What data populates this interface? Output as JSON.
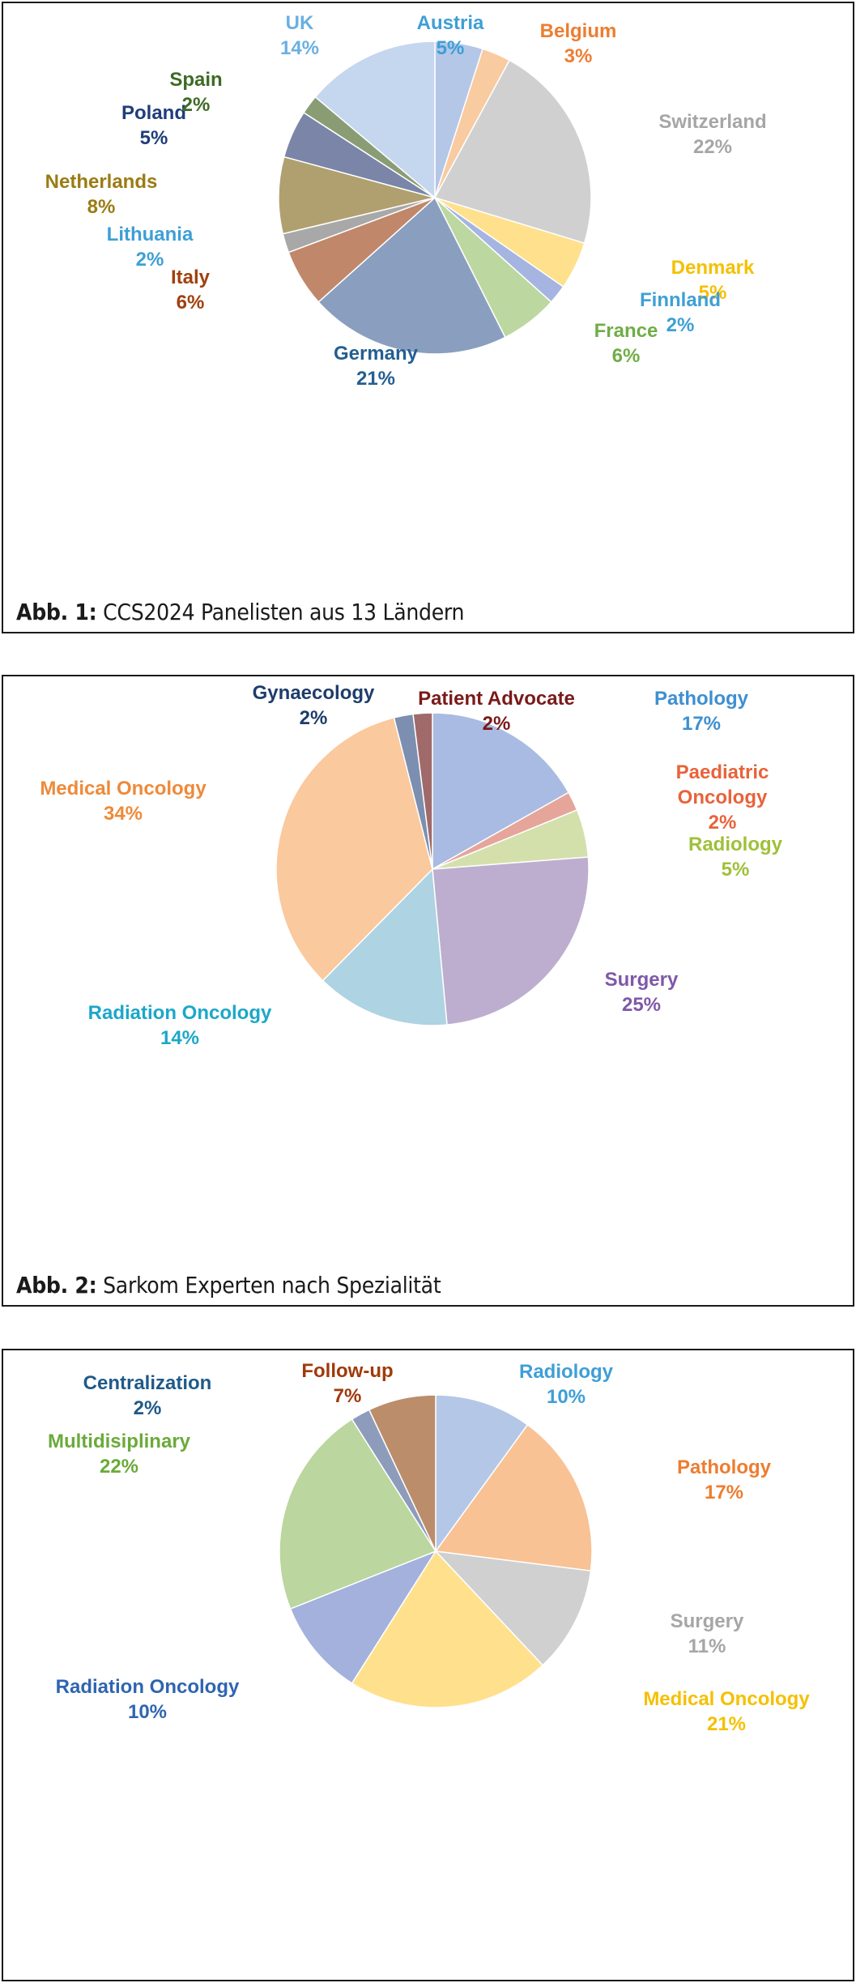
{
  "charts": [
    {
      "caption_prefix": "Abb. 1:",
      "caption_text": "CCS2024 Panelisten aus 13 Ländern",
      "chart_data": {
        "type": "pie",
        "slices": [
          {
            "label": "Austria",
            "pct_label": "5%",
            "value": 5,
            "color": "#b4c7e7",
            "label_color": "#3e9fd6"
          },
          {
            "label": "Belgium",
            "pct_label": "3%",
            "value": 3,
            "color": "#f8cba0",
            "label_color": "#ed7d31"
          },
          {
            "label": "Switzerland",
            "pct_label": "22%",
            "value": 22,
            "color": "#d0d0d0",
            "label_color": "#a6a6a6"
          },
          {
            "label": "Denmark",
            "pct_label": "5%",
            "value": 5,
            "color": "#ffe08c",
            "label_color": "#f5c000"
          },
          {
            "label": "Finnland",
            "pct_label": "2%",
            "value": 2,
            "color": "#a5b4e0",
            "label_color": "#3e9fd6"
          },
          {
            "label": "France",
            "pct_label": "6%",
            "value": 6,
            "color": "#bdd7a0",
            "label_color": "#70ad47"
          },
          {
            "label": "Germany",
            "pct_label": "21%",
            "value": 21,
            "color": "#8a9fbf",
            "label_color": "#255e91"
          },
          {
            "label": "Italy",
            "pct_label": "6%",
            "value": 6,
            "color": "#c0876a",
            "label_color": "#a0400e"
          },
          {
            "label": "Lithuania",
            "pct_label": "2%",
            "value": 2,
            "color": "#a8a8a8",
            "label_color": "#3e9fd6"
          },
          {
            "label": "Netherlands",
            "pct_label": "8%",
            "value": 8,
            "color": "#b0a070",
            "label_color": "#9b7b14"
          },
          {
            "label": "Poland",
            "pct_label": "5%",
            "value": 5,
            "color": "#7a85a8",
            "label_color": "#1f3d7a"
          },
          {
            "label": "Spain",
            "pct_label": "2%",
            "value": 2,
            "color": "#8a9c74",
            "label_color": "#3d6b24"
          },
          {
            "label": "UK",
            "pct_label": "14%",
            "value": 14,
            "color": "#c5d6ef",
            "label_color": "#6ab0e0"
          }
        ]
      }
    },
    {
      "caption_prefix": "Abb. 2:",
      "caption_text": "Sarkom Experten nach Spezialität",
      "chart_data": {
        "type": "pie",
        "slices": [
          {
            "label": "Pathology",
            "pct_label": "17%",
            "value": 17,
            "color": "#a9bbe2",
            "label_color": "#3e8fd0"
          },
          {
            "label": "Paediatric Oncology",
            "pct_label": "2%",
            "value": 2,
            "color": "#e6a59a",
            "label_color": "#e8633a"
          },
          {
            "label": "Radiology",
            "pct_label": "5%",
            "value": 5,
            "color": "#d4e0ac",
            "label_color": "#9fc03a"
          },
          {
            "label": "Surgery",
            "pct_label": "25%",
            "value": 25,
            "color": "#bdaed0",
            "label_color": "#7f58a8"
          },
          {
            "label": "Radiation Oncology",
            "pct_label": "14%",
            "value": 14,
            "color": "#aed3e2",
            "label_color": "#1ca7c9"
          },
          {
            "label": "Medical Oncology",
            "pct_label": "34%",
            "value": 34,
            "color": "#fac99e",
            "label_color": "#ed8a3a"
          },
          {
            "label": "Gynaecology",
            "pct_label": "2%",
            "value": 2,
            "color": "#7c8fb0",
            "label_color": "#1f3d6b"
          },
          {
            "label": "Patient Advocate",
            "pct_label": "2%",
            "value": 2,
            "color": "#a06a6a",
            "label_color": "#7a1a1a"
          }
        ]
      }
    },
    {
      "caption_prefix": "",
      "caption_text": "",
      "chart_data": {
        "type": "pie",
        "slices": [
          {
            "label": "Radiology",
            "pct_label": "10%",
            "value": 10,
            "color": "#b4c7e7",
            "label_color": "#3e9fd6"
          },
          {
            "label": "Pathology",
            "pct_label": "17%",
            "value": 17,
            "color": "#f8c295",
            "label_color": "#ed7d31"
          },
          {
            "label": "Surgery",
            "pct_label": "11%",
            "value": 11,
            "color": "#d0d0d0",
            "label_color": "#a6a6a6"
          },
          {
            "label": "Medical Oncology",
            "pct_label": "21%",
            "value": 21,
            "color": "#ffe08c",
            "label_color": "#f5c000"
          },
          {
            "label": "Radiation Oncology",
            "pct_label": "10%",
            "value": 10,
            "color": "#a3b1dc",
            "label_color": "#2f65b0"
          },
          {
            "label": "Multidisiplinary",
            "pct_label": "22%",
            "value": 22,
            "color": "#bbd69e",
            "label_color": "#6aaa3a"
          },
          {
            "label": "Centralization",
            "pct_label": "2%",
            "value": 2,
            "color": "#8e9cbc",
            "label_color": "#1f5a8a"
          },
          {
            "label": "Follow-up",
            "pct_label": "7%",
            "value": 7,
            "color": "#bc8d6b",
            "label_color": "#a03a0a"
          }
        ]
      }
    }
  ]
}
